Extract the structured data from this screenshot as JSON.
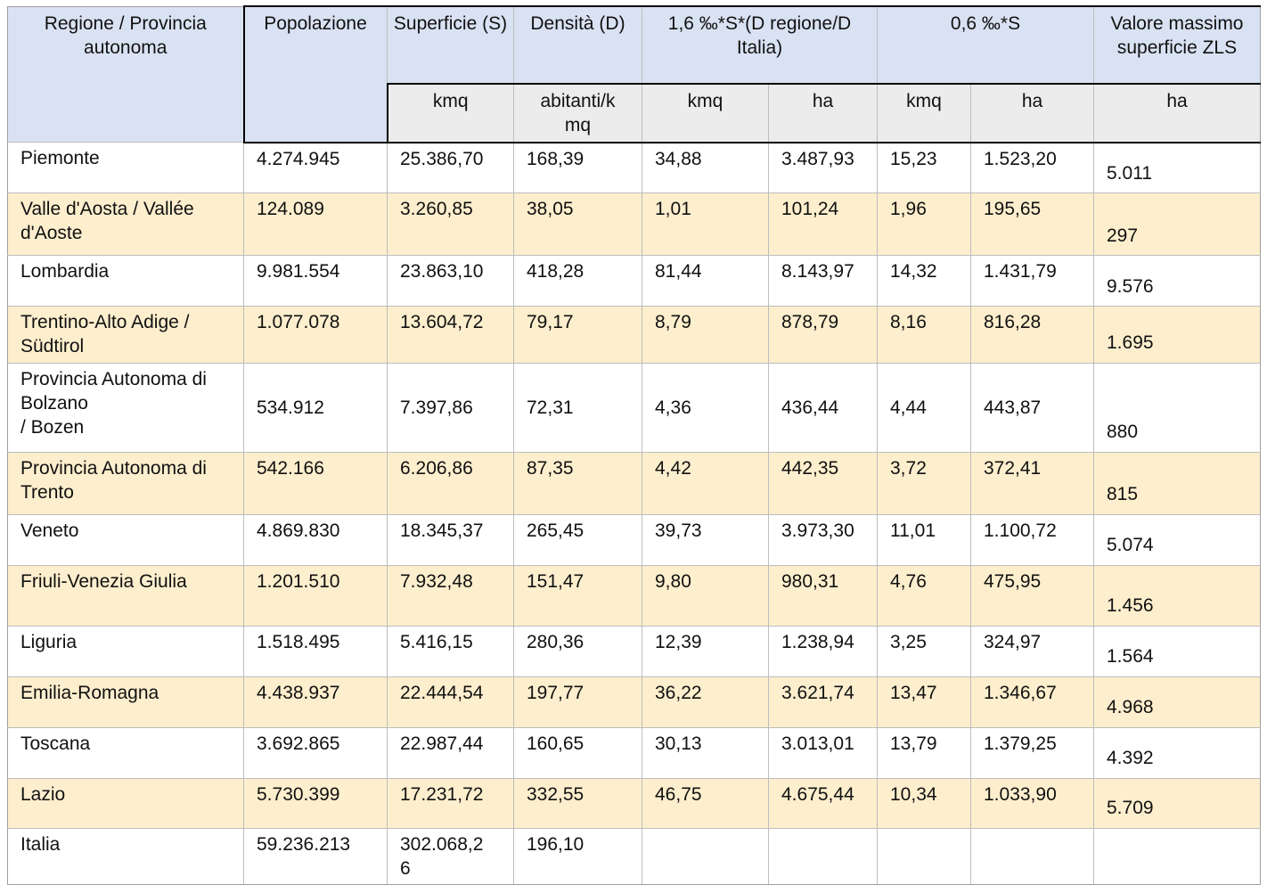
{
  "colors": {
    "header_blue": "#d9e2f3",
    "unit_row_gray": "#ececec",
    "row_highlight_cream": "#fdeecd",
    "grid_line": "#bdbdbd",
    "emphasis_border": "#000000"
  },
  "table": {
    "header": {
      "region": "Regione / Provincia autonoma",
      "population": "Popolazione",
      "superficie": "Superficie (S)",
      "densita": "Densità (D)",
      "formula_16": "1,6 ‰*S*(D regione/D Italia)",
      "formula_06": "0,6 ‰*S",
      "zls_max": "Valore massimo superficie ZLS",
      "units": {
        "superficie": "kmq",
        "densita": "abitanti/kmq",
        "kmq_16": "kmq",
        "ha_16": "ha",
        "kmq_06": "kmq",
        "ha_06": "ha",
        "zls": "ha"
      }
    },
    "rows": [
      {
        "region": "Piemonte",
        "population": "4.274.945",
        "superficie": "25.386,70",
        "densita": "168,39",
        "kmq_16": "34,88",
        "ha_16": "3.487,93",
        "kmq_06": "15,23",
        "ha_06": "1.523,20",
        "zls_max": "5.011"
      },
      {
        "region": "Valle d'Aosta / Vallée d'Aoste",
        "population": "124.089",
        "superficie": "3.260,85",
        "densita": "38,05",
        "kmq_16": "1,01",
        "ha_16": "101,24",
        "kmq_06": "1,96",
        "ha_06": "195,65",
        "zls_max": "297"
      },
      {
        "region": "Lombardia",
        "population": "9.981.554",
        "superficie": "23.863,10",
        "densita": "418,28",
        "kmq_16": "81,44",
        "ha_16": "8.143,97",
        "kmq_06": "14,32",
        "ha_06": "1.431,79",
        "zls_max": "9.576"
      },
      {
        "region": "Trentino-Alto Adige / Südtirol",
        "population": "1.077.078",
        "superficie": "13.604,72",
        "densita": "79,17",
        "kmq_16": "8,79",
        "ha_16": "878,79",
        "kmq_06": "8,16",
        "ha_06": "816,28",
        "zls_max": "1.695"
      },
      {
        "region": "Provincia Autonoma di Bolzano\n/ Bozen",
        "population": "534.912",
        "superficie": "7.397,86",
        "densita": "72,31",
        "kmq_16": "4,36",
        "ha_16": "436,44",
        "kmq_06": "4,44",
        "ha_06": "443,87",
        "zls_max": "880"
      },
      {
        "region": "Provincia Autonoma di Trento",
        "population": "542.166",
        "superficie": "6.206,86",
        "densita": "87,35",
        "kmq_16": "4,42",
        "ha_16": "442,35",
        "kmq_06": "3,72",
        "ha_06": "372,41",
        "zls_max": "815"
      },
      {
        "region": "Veneto",
        "population": "4.869.830",
        "superficie": "18.345,37",
        "densita": "265,45",
        "kmq_16": "39,73",
        "ha_16": "3.973,30",
        "kmq_06": "11,01",
        "ha_06": "1.100,72",
        "zls_max": "5.074"
      },
      {
        "region": "Friuli-Venezia Giulia",
        "population": "1.201.510",
        "superficie": "7.932,48",
        "densita": "151,47",
        "kmq_16": "9,80",
        "ha_16": "980,31",
        "kmq_06": "4,76",
        "ha_06": "475,95",
        "zls_max": "1.456"
      },
      {
        "region": "Liguria",
        "population": "1.518.495",
        "superficie": "5.416,15",
        "densita": "280,36",
        "kmq_16": "12,39",
        "ha_16": "1.238,94",
        "kmq_06": "3,25",
        "ha_06": "324,97",
        "zls_max": "1.564"
      },
      {
        "region": "Emilia-Romagna",
        "population": "4.438.937",
        "superficie": "22.444,54",
        "densita": "197,77",
        "kmq_16": "36,22",
        "ha_16": "3.621,74",
        "kmq_06": "13,47",
        "ha_06": "1.346,67",
        "zls_max": "4.968"
      },
      {
        "region": "Toscana",
        "population": "3.692.865",
        "superficie": "22.987,44",
        "densita": "160,65",
        "kmq_16": "30,13",
        "ha_16": "3.013,01",
        "kmq_06": "13,79",
        "ha_06": "1.379,25",
        "zls_max": "4.392"
      },
      {
        "region": "Lazio",
        "population": "5.730.399",
        "superficie": "17.231,72",
        "densita": "332,55",
        "kmq_16": "46,75",
        "ha_16": "4.675,44",
        "kmq_06": "10,34",
        "ha_06": "1.033,90",
        "zls_max": "5.709"
      },
      {
        "region": "Italia",
        "population": "59.236.213",
        "superficie": "302.068,26",
        "densita": "196,10",
        "kmq_16": "",
        "ha_16": "",
        "kmq_06": "",
        "ha_06": "",
        "zls_max": ""
      }
    ]
  }
}
